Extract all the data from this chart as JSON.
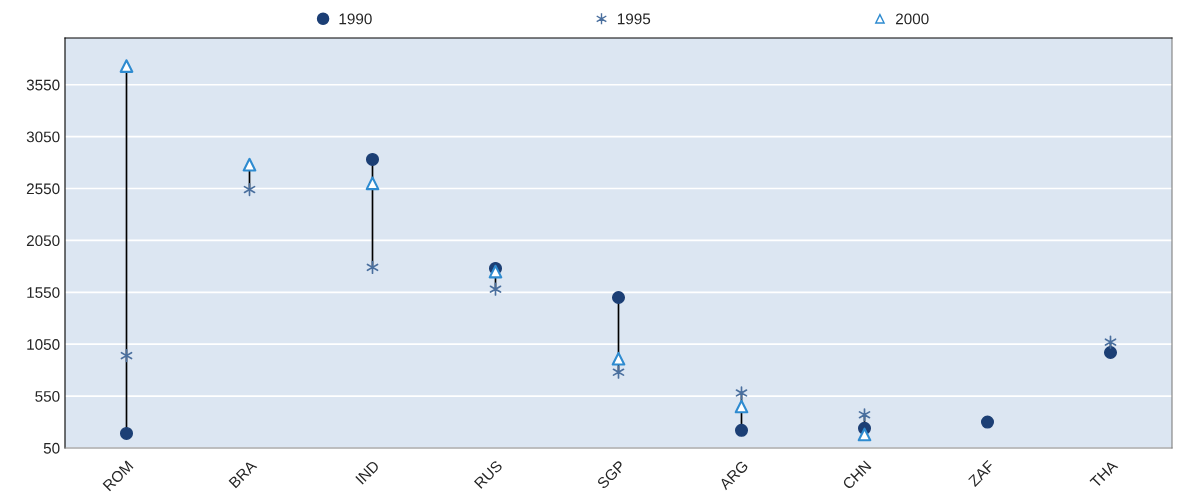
{
  "chart_data": {
    "type": "scatter",
    "categories": [
      "ROM",
      "BRA",
      "IND",
      "RUS",
      "SGP",
      "ARG",
      "CHN",
      "ZAF",
      "THA"
    ],
    "series": [
      {
        "name": "1990",
        "color": "#1c3f75",
        "marker": "circle",
        "values": [
          190,
          null,
          2830,
          1780,
          1500,
          220,
          240,
          300,
          970
        ]
      },
      {
        "name": "1995",
        "color": "#4a6f9e",
        "marker": "cross",
        "values": [
          940,
          2540,
          1790,
          1580,
          780,
          580,
          370,
          null,
          1070
        ]
      },
      {
        "name": "2000",
        "color": "#2e8bd0",
        "marker": "triangle",
        "values": [
          3730,
          2780,
          2600,
          1750,
          910,
          450,
          180,
          null,
          null
        ]
      }
    ],
    "ylim": [
      50,
      4000
    ],
    "yticks": [
      50,
      550,
      1050,
      1550,
      2050,
      2550,
      3050,
      3550
    ],
    "grid": "y",
    "legend": "top"
  }
}
